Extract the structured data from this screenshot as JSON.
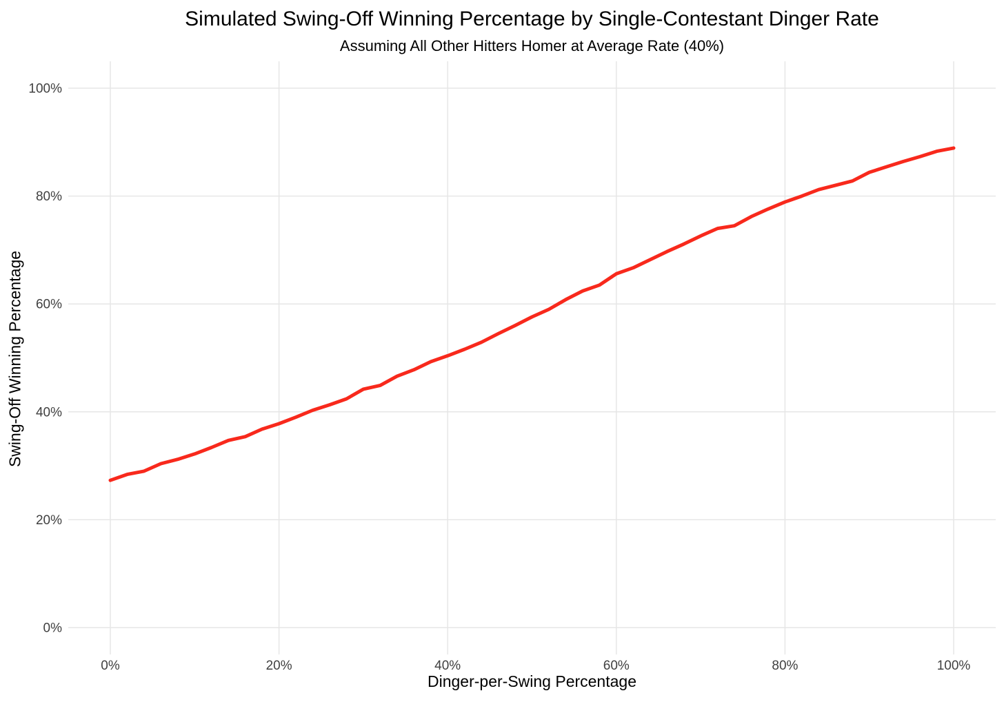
{
  "chart_data": {
    "type": "line",
    "title": "Simulated Swing-Off Winning Percentage by Single-Contestant Dinger Rate",
    "subtitle": "Assuming All Other Hitters Homer at Average Rate (40%)",
    "xlabel": "Dinger-per-Swing Percentage",
    "ylabel": "Swing-Off Winning Percentage",
    "xlim": [
      0,
      100
    ],
    "ylim": [
      0,
      100
    ],
    "x_ticks": [
      0,
      20,
      40,
      60,
      80,
      100
    ],
    "y_ticks": [
      0,
      20,
      40,
      60,
      80,
      100
    ],
    "tick_suffix": "%",
    "grid": true,
    "legend": "none",
    "colors": {
      "line": "#F8291C",
      "grid": "#E6E6E6",
      "tick_label": "#404040",
      "text": "#000000"
    },
    "line_width": 5,
    "series": [
      {
        "name": "Swing-Off Winning Percentage",
        "color": "#F8291C",
        "x": [
          0,
          2,
          4,
          6,
          8,
          10,
          12,
          14,
          16,
          18,
          20,
          22,
          24,
          26,
          28,
          30,
          32,
          34,
          36,
          38,
          40,
          42,
          44,
          46,
          48,
          50,
          52,
          54,
          56,
          58,
          60,
          62,
          64,
          66,
          68,
          70,
          72,
          74,
          76,
          78,
          80,
          82,
          84,
          86,
          88,
          90,
          92,
          94,
          96,
          98,
          100
        ],
        "y": [
          27.3,
          28.4,
          29.0,
          30.4,
          31.2,
          32.2,
          33.4,
          34.7,
          35.4,
          36.8,
          37.8,
          39.0,
          40.3,
          41.3,
          42.4,
          44.2,
          44.9,
          46.6,
          47.8,
          49.3,
          50.4,
          51.6,
          52.9,
          54.5,
          56.0,
          57.6,
          59.0,
          60.8,
          62.4,
          63.5,
          65.6,
          66.7,
          68.2,
          69.7,
          71.1,
          72.6,
          74.0,
          74.5,
          76.2,
          77.6,
          78.9,
          80.0,
          81.2,
          82.0,
          82.8,
          84.4,
          85.4,
          86.4,
          87.3,
          88.3,
          88.9
        ]
      }
    ]
  }
}
